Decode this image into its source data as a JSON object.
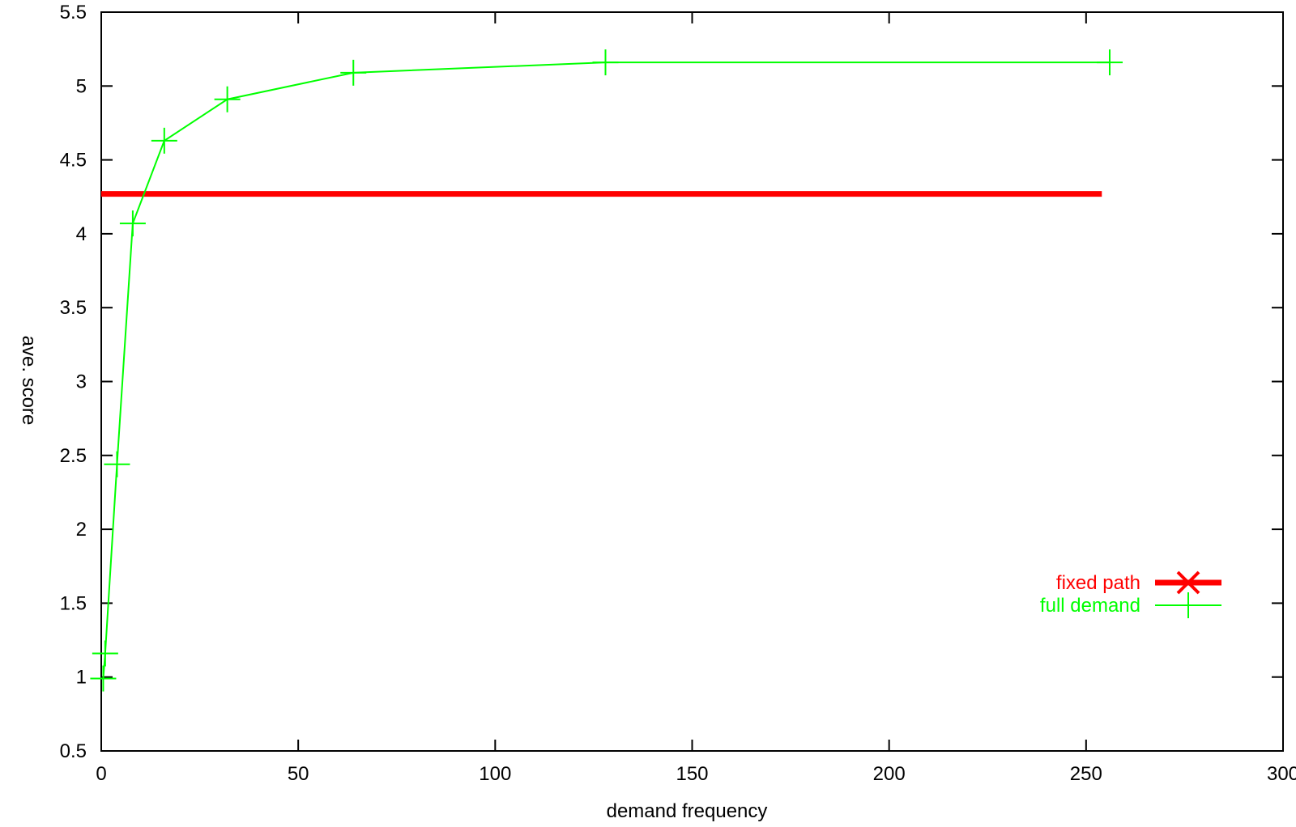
{
  "chart_data": {
    "type": "line",
    "title": "",
    "xlabel": "demand frequency",
    "ylabel": "ave. score",
    "xlim": [
      0,
      300
    ],
    "ylim": [
      0.5,
      5.5
    ],
    "xticks": [
      "0",
      "50",
      "100",
      "150",
      "200",
      "250",
      "300"
    ],
    "yticks": [
      "0.5",
      "1",
      "1.5",
      "2",
      "2.5",
      "3",
      "3.5",
      "4",
      "4.5",
      "5",
      "5.5"
    ],
    "grid": false,
    "legend_position": "right",
    "series": [
      {
        "name": "fixed path",
        "color": "#ff0000",
        "marker": "x",
        "x": [
          0,
          254
        ],
        "y": [
          4.27,
          4.27
        ]
      },
      {
        "name": "full demand",
        "color": "#00ff00",
        "marker": "+",
        "x": [
          0.5,
          1,
          4,
          8,
          16,
          32,
          64,
          128,
          256
        ],
        "y": [
          0.99,
          1.16,
          2.44,
          4.07,
          4.63,
          4.91,
          5.09,
          5.16,
          5.16
        ]
      }
    ]
  }
}
